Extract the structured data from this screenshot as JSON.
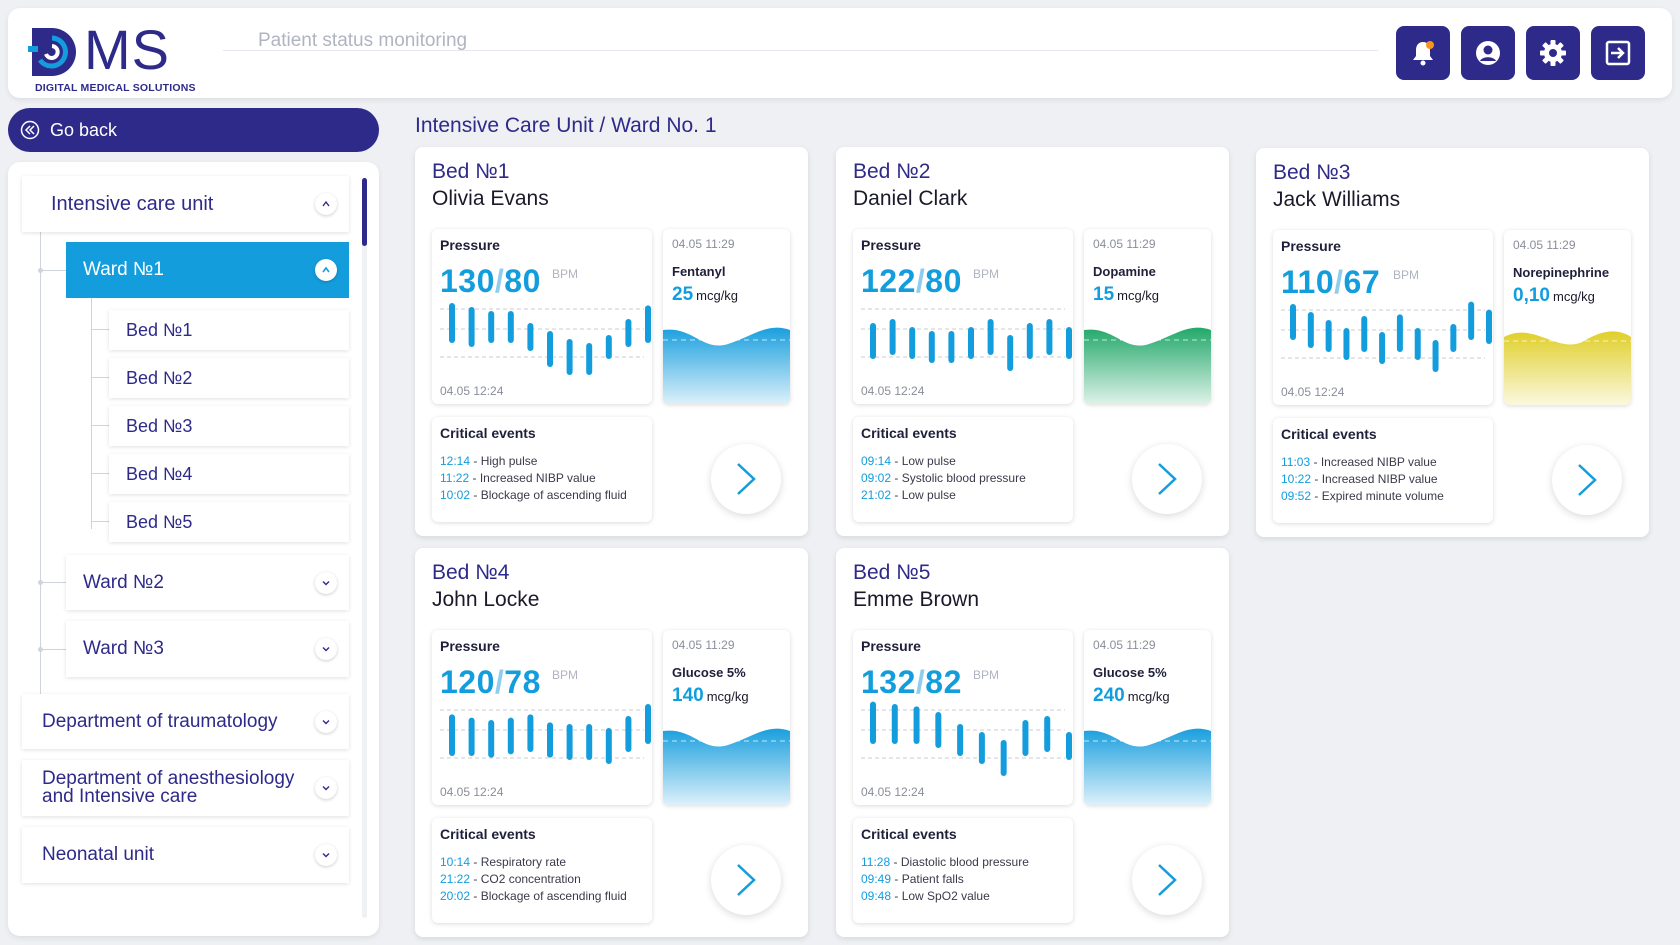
{
  "header": {
    "logo_text": "MS",
    "logo_subtitle": "DIGITAL MEDICAL SOLUTIONS",
    "title": "Patient status monitoring",
    "buttons": [
      {
        "name": "notifications",
        "icon": "bell-icon"
      },
      {
        "name": "profile",
        "icon": "user-icon"
      },
      {
        "name": "settings",
        "icon": "gear-icon"
      },
      {
        "name": "logout",
        "icon": "exit-icon"
      }
    ]
  },
  "nav": {
    "go_back": "Go back"
  },
  "sidebar": {
    "unit": "Intensive care unit",
    "wards": [
      {
        "label": "Ward №1",
        "expanded": true
      },
      {
        "label": "Ward №2",
        "expanded": false
      },
      {
        "label": "Ward №3",
        "expanded": false
      }
    ],
    "beds": [
      "Bed №1",
      "Bed №2",
      "Bed №3",
      "Bed №4",
      "Bed №5"
    ],
    "departments": [
      "Department of traumatology",
      "Department of anesthesiology and Intensive care",
      "Neonatal unit"
    ]
  },
  "breadcrumb": "Intensive Care Unit / Ward No. 1",
  "labels": {
    "pressure": "Pressure",
    "unit_bpm": "BPM",
    "critical_events": "Critical events",
    "dose_unit": "mcg/kg",
    "chart_time": "04.05 12:24",
    "drug_time": "04.05 11:29"
  },
  "colors": {
    "brand": "#2e2a8a",
    "accent": "#139ddc",
    "wave_blue": "#1a9fde",
    "wave_green": "#22a86a",
    "wave_yellow": "#e0cf2a"
  },
  "beds": [
    {
      "bed": "Bed №1",
      "patient": "Olivia Evans",
      "sys": "130",
      "dia": "80",
      "bars": [
        [
          0.95,
          0.55
        ],
        [
          0.9,
          0.5
        ],
        [
          0.85,
          0.55
        ],
        [
          0.85,
          0.55
        ],
        [
          0.7,
          0.45
        ],
        [
          0.6,
          0.25
        ],
        [
          0.5,
          0.15
        ],
        [
          0.45,
          0.15
        ],
        [
          0.55,
          0.35
        ],
        [
          0.75,
          0.5
        ],
        [
          0.92,
          0.55
        ]
      ],
      "drug": "Fentanyl",
      "dose": "25",
      "wave": "blue",
      "events": [
        {
          "time": "12:14",
          "text": "High pulse"
        },
        {
          "time": "11:22",
          "text": "Increased NIBP value"
        },
        {
          "time": "10:02",
          "text": "Blockage of ascending fluid"
        }
      ]
    },
    {
      "bed": "Bed №2",
      "patient": "Daniel Clark",
      "sys": "122",
      "dia": "80",
      "bars": [
        [
          0.7,
          0.35
        ],
        [
          0.75,
          0.4
        ],
        [
          0.65,
          0.35
        ],
        [
          0.6,
          0.3
        ],
        [
          0.6,
          0.3
        ],
        [
          0.65,
          0.35
        ],
        [
          0.75,
          0.4
        ],
        [
          0.55,
          0.2
        ],
        [
          0.7,
          0.35
        ],
        [
          0.75,
          0.4
        ],
        [
          0.65,
          0.35
        ]
      ],
      "drug": "Dopamine",
      "dose": "15",
      "wave": "green",
      "events": [
        {
          "time": "09:14",
          "text": "Low pulse"
        },
        {
          "time": "09:02",
          "text": "Systolic blood pressure"
        },
        {
          "time": "21:02",
          "text": "Low pulse"
        }
      ]
    },
    {
      "bed": "Bed №3",
      "patient": "Jack Williams",
      "sys": "110",
      "dia": "67",
      "bars": [
        [
          0.95,
          0.6
        ],
        [
          0.85,
          0.5
        ],
        [
          0.75,
          0.45
        ],
        [
          0.65,
          0.35
        ],
        [
          0.8,
          0.45
        ],
        [
          0.6,
          0.3
        ],
        [
          0.82,
          0.45
        ],
        [
          0.65,
          0.35
        ],
        [
          0.5,
          0.2
        ],
        [
          0.7,
          0.45
        ],
        [
          0.98,
          0.6
        ],
        [
          0.88,
          0.55
        ]
      ],
      "drug": "Norepinephrine",
      "dose": "0,10",
      "wave": "yellow",
      "events": [
        {
          "time": "11:03",
          "text": "Increased NIBP value"
        },
        {
          "time": "10:22",
          "text": "Increased NIBP value"
        },
        {
          "time": "09:52",
          "text": "Expired minute volume"
        }
      ]
    },
    {
      "bed": "Bed №4",
      "patient": "John Locke",
      "sys": "120",
      "dia": "78",
      "bars": [
        [
          0.82,
          0.4
        ],
        [
          0.78,
          0.4
        ],
        [
          0.75,
          0.38
        ],
        [
          0.78,
          0.42
        ],
        [
          0.82,
          0.45
        ],
        [
          0.72,
          0.38
        ],
        [
          0.7,
          0.35
        ],
        [
          0.7,
          0.35
        ],
        [
          0.65,
          0.3
        ],
        [
          0.8,
          0.45
        ],
        [
          0.95,
          0.55
        ]
      ],
      "drug": "Glucose 5%",
      "dose": "140",
      "wave": "blue",
      "events": [
        {
          "time": "10:14",
          "text": "Respiratory rate"
        },
        {
          "time": "21:22",
          "text": "CO2 concentration"
        },
        {
          "time": "20:02",
          "text": "Blockage of ascending fluid"
        }
      ]
    },
    {
      "bed": "Bed №5",
      "patient": "Emme Brown",
      "sys": "132",
      "dia": "82",
      "bars": [
        [
          0.98,
          0.55
        ],
        [
          0.95,
          0.55
        ],
        [
          0.92,
          0.55
        ],
        [
          0.85,
          0.5
        ],
        [
          0.7,
          0.4
        ],
        [
          0.6,
          0.3
        ],
        [
          0.5,
          0.15
        ],
        [
          0.75,
          0.4
        ],
        [
          0.8,
          0.45
        ],
        [
          0.6,
          0.35
        ]
      ],
      "drug": "Glucose 5%",
      "dose": "240",
      "wave": "blue",
      "events": [
        {
          "time": "11:28",
          "text": "Diastolic blood pressure"
        },
        {
          "time": "09:49",
          "text": "Patient falls"
        },
        {
          "time": "09:48",
          "text": "Low SpO2 value"
        }
      ]
    }
  ]
}
